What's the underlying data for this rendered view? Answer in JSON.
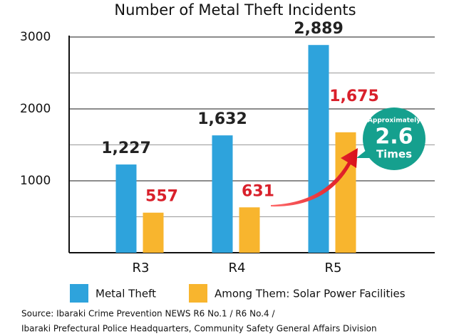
{
  "chart_data": {
    "type": "bar",
    "title": "Number of Metal Theft Incidents",
    "categories": [
      "R3",
      "R4",
      "R5"
    ],
    "series": [
      {
        "name": "Metal Theft",
        "color": "#2ea3dc",
        "values": [
          1227,
          1632,
          2889
        ],
        "value_labels": [
          "1,227",
          "1,632",
          "2,889"
        ],
        "label_color": "#222222"
      },
      {
        "name": "Among Them: Solar Power Facilities",
        "color": "#f8b52e",
        "values": [
          557,
          631,
          1675
        ],
        "value_labels": [
          "557",
          "631",
          "1,675"
        ],
        "label_color": "#d9202b"
      }
    ],
    "ylim": [
      0,
      3000
    ],
    "yticks": [
      1000,
      2000,
      3000
    ],
    "minor_gridlines": [
      500,
      1500,
      2500
    ],
    "grid": true,
    "annotation": {
      "line1": "Approximately",
      "line2": "2.6",
      "line3": "Times",
      "color": "#15a08e"
    },
    "source": [
      "Source: Ibaraki Crime Prevention NEWS R6 No.1 / R6 No.4 /",
      "Ibaraki Prefectural Police Headquarters, Community Safety General Affairs Division"
    ]
  }
}
